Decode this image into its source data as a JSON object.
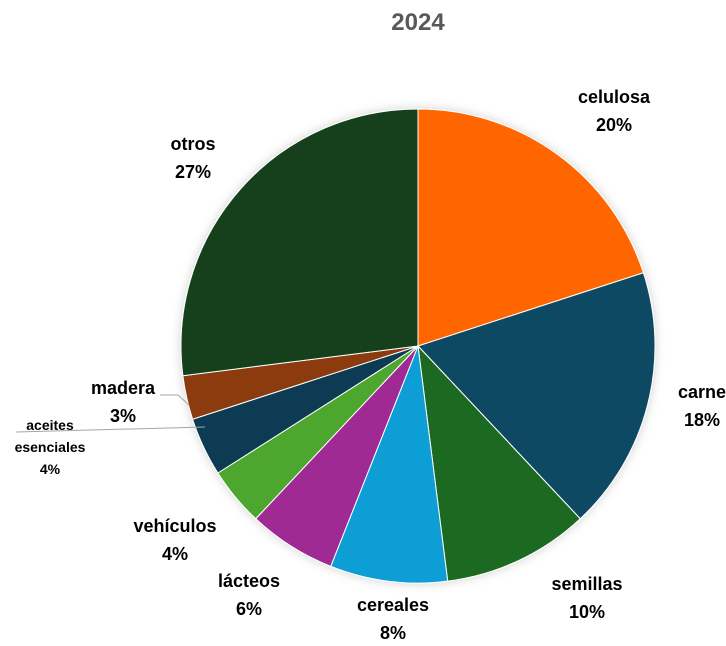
{
  "chart_data": {
    "type": "pie",
    "title": "2024",
    "slices": [
      {
        "label": "celulosa",
        "value": 20,
        "value_label": "20%",
        "color": "#FF6600"
      },
      {
        "label": "carne",
        "value": 18,
        "value_label": "18%",
        "color": "#0B4A63"
      },
      {
        "label": "semillas",
        "value": 10,
        "value_label": "10%",
        "color": "#1E6B23"
      },
      {
        "label": "cereales",
        "value": 8,
        "value_label": "8%",
        "color": "#0F9ED5"
      },
      {
        "label": "lácteos",
        "value": 6,
        "value_label": "6%",
        "color": "#A02B93"
      },
      {
        "label": "vehículos",
        "value": 4,
        "value_label": "4%",
        "color": "#4EA72E"
      },
      {
        "label": "aceites esenciales",
        "label_lines": [
          "aceites",
          "esenciales"
        ],
        "value": 4,
        "value_label": "4%",
        "color": "#0E3A52"
      },
      {
        "label": "madera",
        "value": 3,
        "value_label": "3%",
        "color": "#8B3A0F"
      },
      {
        "label": "otros",
        "value": 27,
        "value_label": "27%",
        "color": "#12411A"
      }
    ]
  }
}
